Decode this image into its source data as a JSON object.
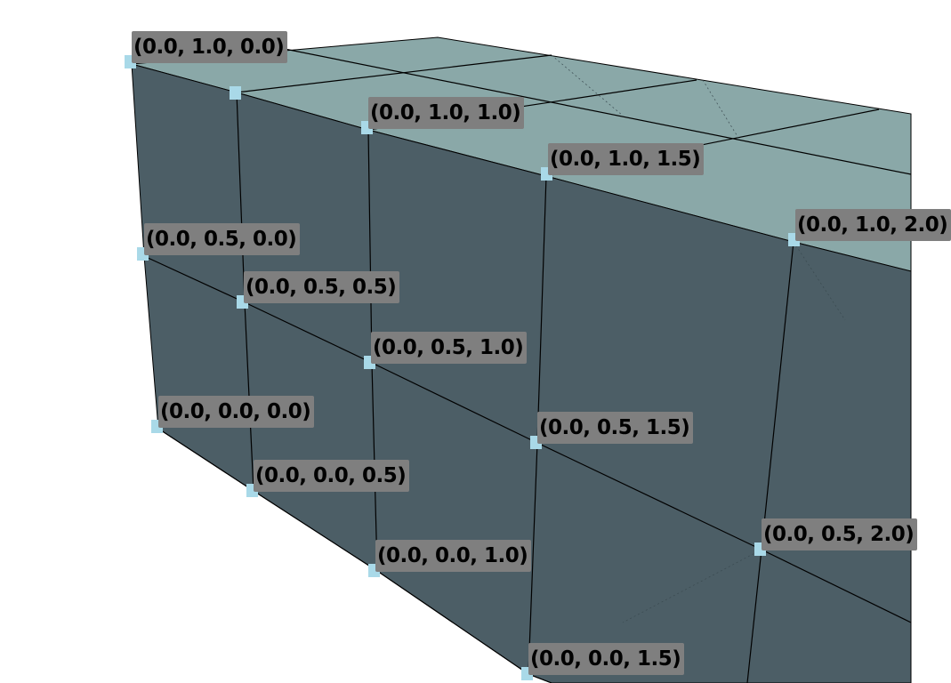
{
  "colors": {
    "front_face": "#4c5e66",
    "top_face": "#8aa8a8",
    "edge": "#000000",
    "label_bg": "#7f7f7f",
    "point_marker": "#a9d9e8",
    "background": "#ffffff"
  },
  "point_labels": [
    "(0.0, 1.0, 0.0)",
    "(0.0, 1.0, 1.0)",
    "(0.0, 1.0, 1.5)",
    "(0.0, 1.0, 2.0)",
    "(0.0, 0.5, 0.0)",
    "(0.0, 0.5, 0.5)",
    "(0.0, 0.5, 1.0)",
    "(0.0, 0.5, 1.5)",
    "(0.0, 0.5, 2.0)",
    "(0.0, 0.0, 0.0)",
    "(0.0, 0.0, 0.5)",
    "(0.0, 0.0, 1.0)",
    "(0.0, 0.0, 1.5)"
  ]
}
